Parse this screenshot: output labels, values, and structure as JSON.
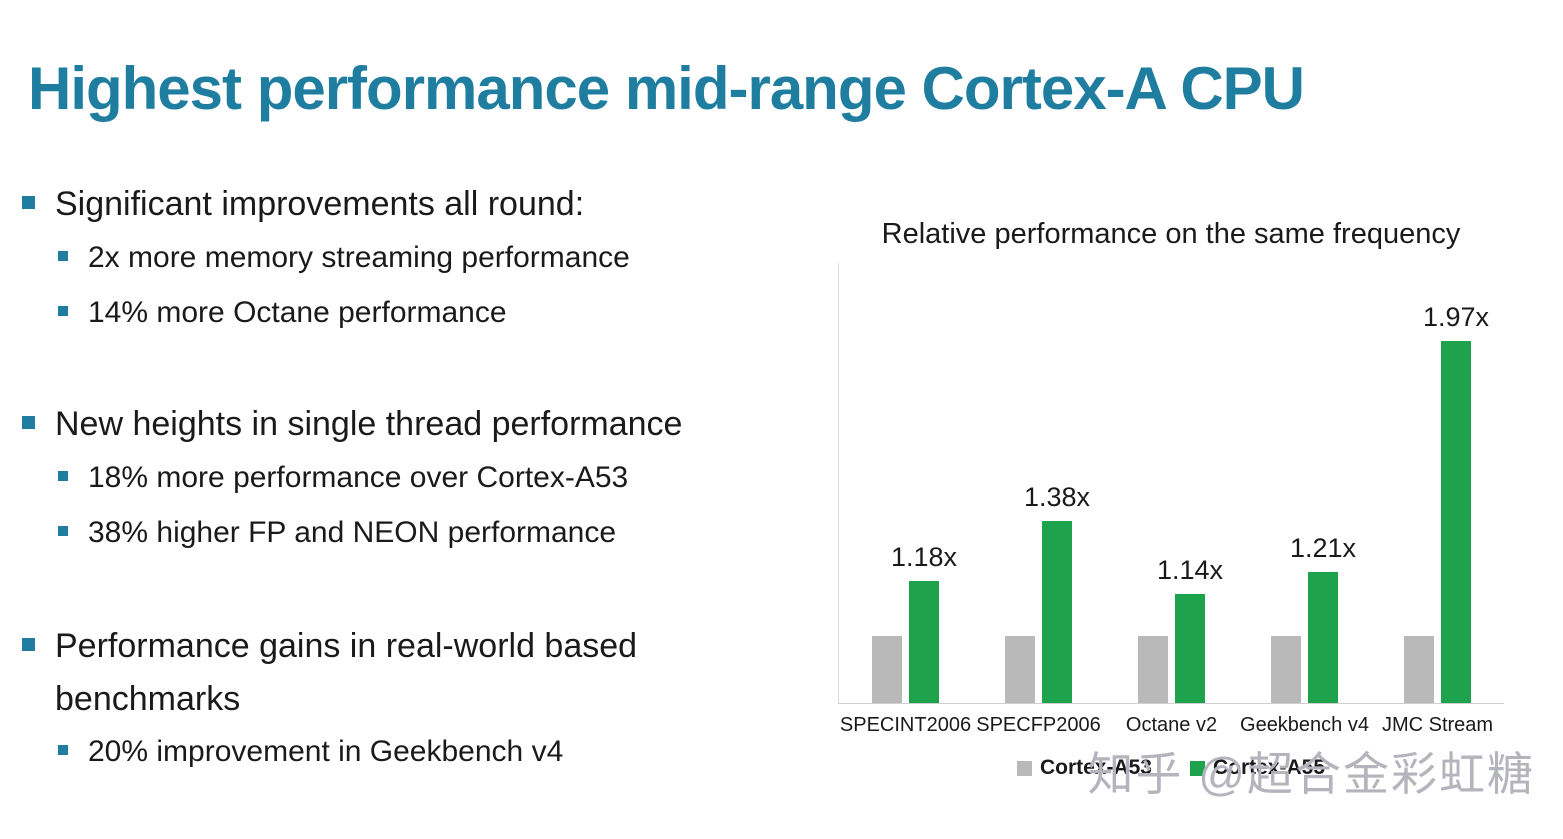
{
  "slide": {
    "title": "Highest performance mid-range Cortex-A CPU",
    "accent_color": "#1f7ea0",
    "bullets": [
      {
        "text": "Significant improvements all round:",
        "sub": [
          "2x more memory streaming performance",
          "14% more Octane performance"
        ]
      },
      {
        "text": "New heights in single thread performance",
        "sub": [
          "18% more performance over Cortex-A53",
          "38% higher FP and NEON performance"
        ]
      },
      {
        "text": "Performance gains in real-world based benchmarks",
        "sub": [
          "20% improvement in Geekbench v4"
        ]
      }
    ]
  },
  "chart_data": {
    "type": "bar",
    "title": "Relative performance on the same frequency",
    "categories": [
      "SPECINT2006",
      "SPECFP2006",
      "Octane v2",
      "Geekbench v4",
      "JMC Stream"
    ],
    "series": [
      {
        "name": "Cortex-A53",
        "color": "#b9b9b9",
        "values": [
          1.0,
          1.0,
          1.0,
          1.0,
          1.0
        ]
      },
      {
        "name": "Cortex-A55",
        "color": "#1ea24c",
        "values": [
          1.18,
          1.38,
          1.14,
          1.21,
          1.97
        ]
      }
    ],
    "value_labels": [
      "1.18x",
      "1.38x",
      "1.14x",
      "1.21x",
      "1.97x"
    ],
    "xlabel": "",
    "ylabel": "",
    "axis_min_shown": 0.78,
    "ylim": [
      0.78,
      2.28
    ],
    "grid": false,
    "legend_position": "bottom"
  },
  "watermark": {
    "text": "知乎 @超合金彩虹糖"
  }
}
